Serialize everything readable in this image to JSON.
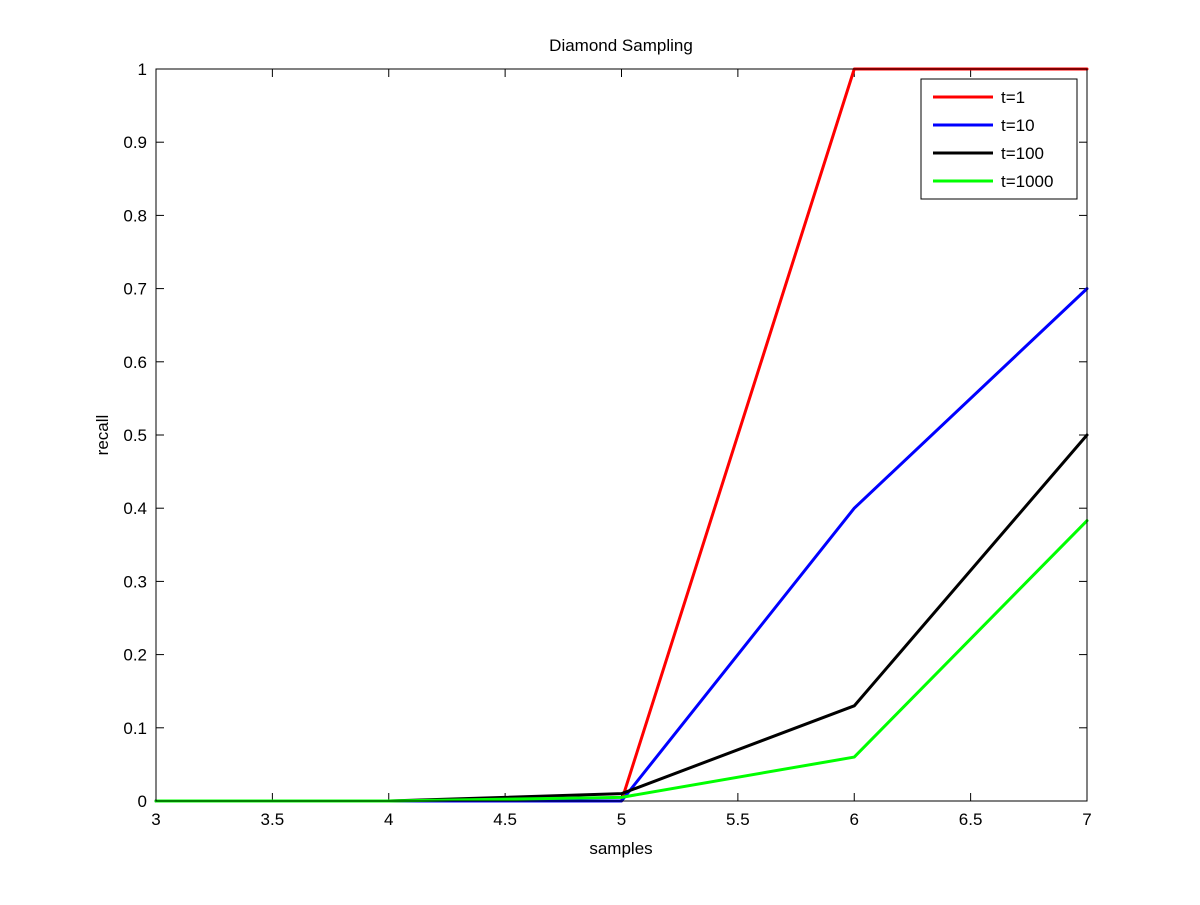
{
  "chart_data": {
    "type": "line",
    "title": "Diamond Sampling",
    "xlabel": "samples",
    "ylabel": "recall",
    "xlim": [
      3,
      7
    ],
    "ylim": [
      0,
      1
    ],
    "xticks": [
      "3",
      "3.5",
      "4",
      "4.5",
      "5",
      "5.5",
      "6",
      "6.5",
      "7"
    ],
    "yticks": [
      "0",
      "0.1",
      "0.2",
      "0.3",
      "0.4",
      "0.5",
      "0.6",
      "0.7",
      "0.8",
      "0.9",
      "1"
    ],
    "x": [
      3,
      4,
      5,
      6,
      7
    ],
    "grid": false,
    "legend_position": "top-right",
    "series": [
      {
        "name": "t=1",
        "color": "#ff0000",
        "values": [
          0,
          0,
          0,
          1,
          1
        ]
      },
      {
        "name": "t=10",
        "color": "#0000ff",
        "values": [
          0,
          0,
          0,
          0.4,
          0.7
        ]
      },
      {
        "name": "t=100",
        "color": "#000000",
        "values": [
          0,
          0,
          0.01,
          0.13,
          0.5
        ]
      },
      {
        "name": "t=1000",
        "color": "#00ff00",
        "values": [
          0,
          0,
          0.005,
          0.06,
          0.383
        ]
      }
    ]
  }
}
